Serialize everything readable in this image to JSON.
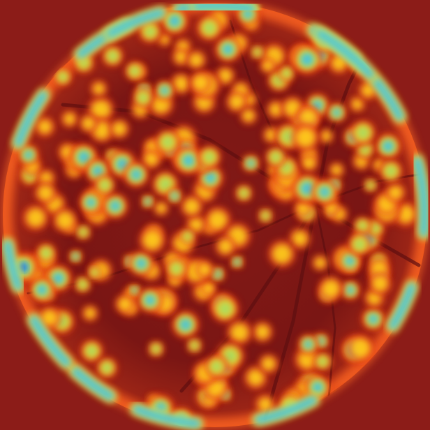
{
  "image": {
    "subject": "retinal-fundus-saliency-heatmap",
    "overlay": "heatmap",
    "colormap": "jet",
    "colors": {
      "background": "#8c1c18",
      "fundus_dark": "#7a1614",
      "rim_bright": "#ff5a1e",
      "heat_low": "#e5341c",
      "heat_mid": "#ffd21e",
      "heat_high": "#3fc0e8",
      "heat_peak": "#2040c8",
      "vessel": "#5e0f10"
    }
  }
}
